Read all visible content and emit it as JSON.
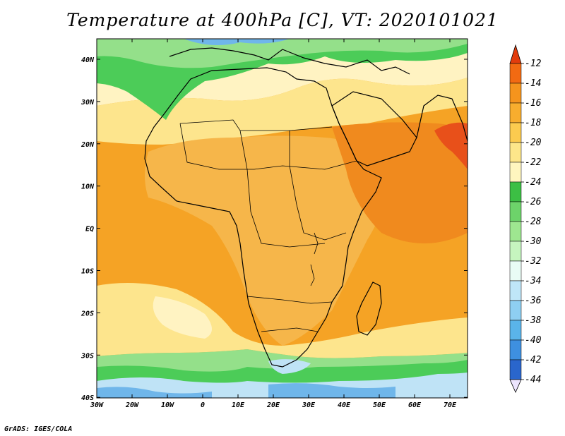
{
  "title": "Temperature at 400hPa [C], VT: 2020101021",
  "credit": "GrADS: IGES/COLA",
  "x_ticks": [
    "30W",
    "20W",
    "10W",
    "0",
    "10E",
    "20E",
    "30E",
    "40E",
    "50E",
    "60E",
    "70E"
  ],
  "y_ticks": [
    "40N",
    "30N",
    "20N",
    "10N",
    "EQ",
    "10S",
    "20S",
    "30S",
    "40S"
  ],
  "colorbar": {
    "labels": [
      "-12",
      "-14",
      "-16",
      "-18",
      "-20",
      "-22",
      "-24",
      "-26",
      "-28",
      "-30",
      "-32",
      "-34",
      "-36",
      "-38",
      "-40",
      "-42",
      "-44"
    ],
    "colors": [
      "#e23c0d",
      "#f26a12",
      "#f5941d",
      "#f8ad2e",
      "#fccb4f",
      "#fde68a",
      "#fff6bf",
      "#3cbf44",
      "#6dd36a",
      "#9ee690",
      "#c6f5bf",
      "#e9fcf5",
      "#bfe6f8",
      "#8ecff2",
      "#5ab4ea",
      "#3e90e0",
      "#2a66cc",
      "#1a40b0",
      "#0c1a7a"
    ],
    "arrow_top_color": "#e23c0d",
    "arrow_bottom_color": "#ede5ff"
  },
  "map_palette": {
    "warm_ocean": "#f5a325",
    "warm_land": "#f6b64a",
    "hot_core": "#f08a1e",
    "pale": "#fde58d",
    "cream": "#fff3c2",
    "green": "#4ccc58",
    "light_green": "#94e08a",
    "blue": "#6fb6ea",
    "light_blue": "#bfe3f6",
    "red": "#e8501a"
  }
}
